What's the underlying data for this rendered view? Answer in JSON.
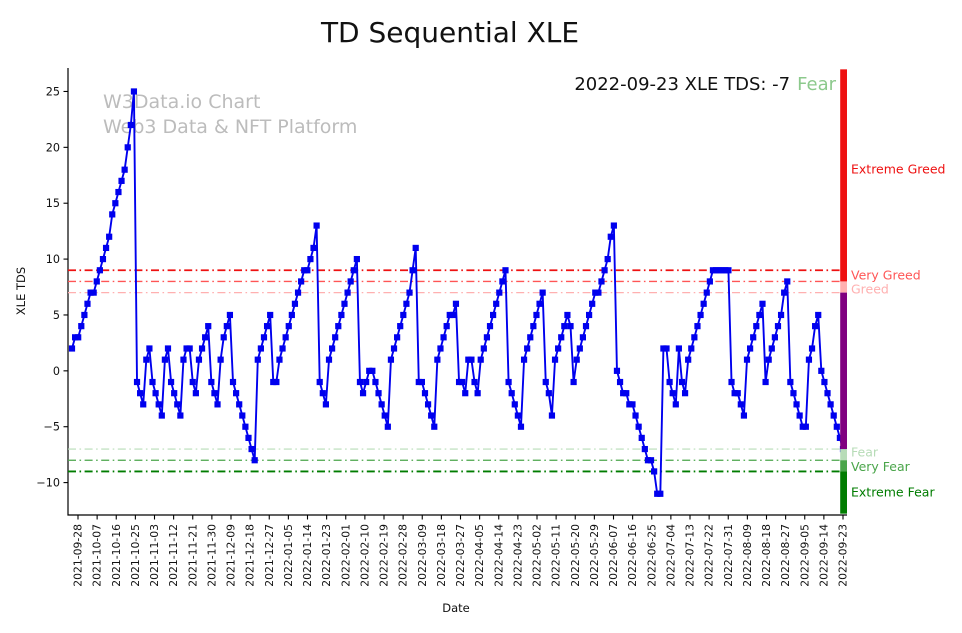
{
  "title": "TD Sequential XLE",
  "watermark": {
    "line1": "W3Data.io Chart",
    "line2": "Web3 Data & NFT Platform",
    "color": "#bcbcbc"
  },
  "annotation": {
    "date_and_value": "2022-09-23 XLE TDS: -7",
    "zone_label": "Fear",
    "zone_color": "#8cc98c",
    "text_color": "#111111"
  },
  "zones": {
    "labels": [
      {
        "text": "Extreme Greed",
        "color": "#ee1111",
        "at_value": 18.0
      },
      {
        "text": "Very Greed",
        "color": "#ff5555",
        "at_value": 8.55
      },
      {
        "text": "Greed",
        "color": "#ffb0b0",
        "at_value": 7.3
      },
      {
        "text": "Fear",
        "color": "#b7dcb7",
        "at_value": -7.3
      },
      {
        "text": "Very Fear",
        "color": "#4aa54a",
        "at_value": -8.6
      },
      {
        "text": "Extreme Fear",
        "color": "#007c00",
        "at_value": -10.9
      }
    ],
    "bar_segments": [
      {
        "from_value": 8,
        "to_value": 27.1,
        "color": "#ee1111"
      },
      {
        "from_value": 7,
        "to_value": 8,
        "color": "#ffb0b0"
      },
      {
        "from_value": -7,
        "to_value": 7,
        "color": "#800080"
      },
      {
        "from_value": -8,
        "to_value": -7,
        "color": "#b7dcb7"
      },
      {
        "from_value": -9,
        "to_value": -8,
        "color": "#4aa54a"
      },
      {
        "from_value": -12.9,
        "to_value": -9,
        "color": "#007c00"
      }
    ]
  },
  "chart_data": {
    "type": "line",
    "title": "TD Sequential XLE",
    "xlabel": "Date",
    "ylabel": "XLE TDS",
    "ylim": [
      -12.9,
      27.1
    ],
    "yticks": [
      25,
      20,
      15,
      10,
      5,
      0,
      -5,
      -10
    ],
    "grid": false,
    "line_color": "#0000ee",
    "marker": "square",
    "x_tick_labels": [
      "2021-09-28",
      "2021-10-07",
      "2021-10-16",
      "2021-10-25",
      "2021-11-03",
      "2021-11-12",
      "2021-11-21",
      "2021-11-30",
      "2021-12-09",
      "2021-12-18",
      "2021-12-27",
      "2022-01-05",
      "2022-01-14",
      "2022-01-23",
      "2022-02-01",
      "2022-02-10",
      "2022-02-19",
      "2022-02-28",
      "2022-03-09",
      "2022-03-18",
      "2022-03-27",
      "2022-04-05",
      "2022-04-14",
      "2022-04-23",
      "2022-05-02",
      "2022-05-11",
      "2022-05-20",
      "2022-05-29",
      "2022-06-07",
      "2022-06-16",
      "2022-06-25",
      "2022-07-04",
      "2022-07-13",
      "2022-07-22",
      "2022-07-31",
      "2022-08-09",
      "2022-08-18",
      "2022-08-27",
      "2022-09-05",
      "2022-09-14",
      "2022-09-23"
    ],
    "thresholds": [
      {
        "value": 9,
        "color": "#ee1111",
        "width": 1.8
      },
      {
        "value": 8,
        "color": "#ff5555",
        "width": 1.3
      },
      {
        "value": 7,
        "color": "#ffb0b0",
        "width": 1.2
      },
      {
        "value": -7,
        "color": "#b7dcb7",
        "width": 1.2
      },
      {
        "value": -8,
        "color": "#4aa54a",
        "width": 1.3
      },
      {
        "value": -9,
        "color": "#007c00",
        "width": 1.8
      }
    ],
    "values": [
      2,
      3,
      3,
      4,
      5,
      6,
      7,
      7,
      8,
      9,
      10,
      11,
      12,
      14,
      15,
      16,
      17,
      18,
      20,
      22,
      25,
      -1,
      -2,
      -3,
      1,
      2,
      -1,
      -2,
      -3,
      -4,
      1,
      2,
      -1,
      -2,
      -3,
      -4,
      1,
      2,
      2,
      -1,
      -2,
      1,
      2,
      3,
      4,
      -1,
      -2,
      -3,
      1,
      3,
      4,
      5,
      -1,
      -2,
      -3,
      -4,
      -5,
      -6,
      -7,
      -8,
      1,
      2,
      3,
      4,
      5,
      -1,
      -1,
      1,
      2,
      3,
      4,
      5,
      6,
      7,
      8,
      9,
      9,
      10,
      11,
      13,
      -1,
      -2,
      -3,
      1,
      2,
      3,
      4,
      5,
      6,
      7,
      8,
      9,
      10,
      -1,
      -2,
      -1,
      0,
      0,
      -1,
      -2,
      -3,
      -4,
      -5,
      1,
      2,
      3,
      4,
      5,
      6,
      7,
      9,
      11,
      -1,
      -1,
      -2,
      -3,
      -4,
      -5,
      1,
      2,
      3,
      4,
      5,
      5,
      6,
      -1,
      -1,
      -2,
      1,
      1,
      -1,
      -2,
      1,
      2,
      3,
      4,
      5,
      6,
      7,
      8,
      9,
      -1,
      -2,
      -3,
      -4,
      -5,
      1,
      2,
      3,
      4,
      5,
      6,
      7,
      -1,
      -2,
      -4,
      1,
      2,
      3,
      4,
      5,
      4,
      -1,
      1,
      2,
      3,
      4,
      5,
      6,
      7,
      7,
      8,
      9,
      10,
      12,
      13,
      0,
      -1,
      -2,
      -2,
      -3,
      -3,
      -4,
      -5,
      -6,
      -7,
      -8,
      -8,
      -9,
      -11,
      -11,
      2,
      2,
      -1,
      -2,
      -3,
      2,
      -1,
      -2,
      1,
      2,
      3,
      4,
      5,
      6,
      7,
      8,
      9,
      9,
      9,
      9,
      9,
      9,
      -1,
      -2,
      -2,
      -3,
      -4,
      1,
      2,
      3,
      4,
      5,
      6,
      -1,
      1,
      2,
      3,
      4,
      5,
      7,
      8,
      -1,
      -2,
      -3,
      -4,
      -5,
      -5,
      1,
      2,
      4,
      5,
      0,
      -1,
      -2,
      -3,
      -4,
      -5,
      -6,
      -7
    ]
  }
}
